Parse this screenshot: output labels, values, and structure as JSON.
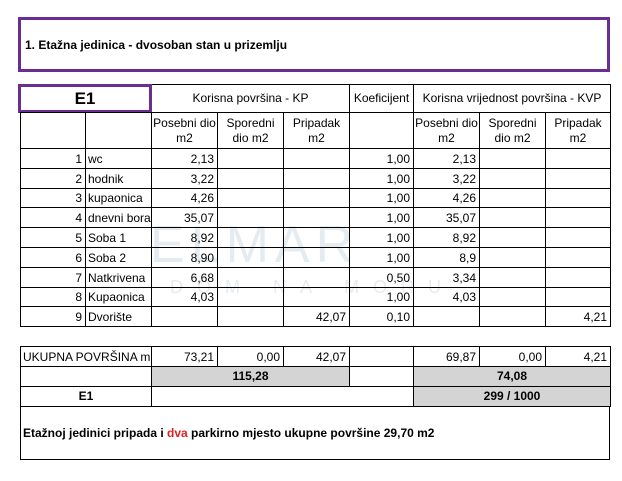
{
  "header": {
    "title": "1. Etažna jedinica - dvosoban stan u prizemlju"
  },
  "table": {
    "unit_label": "E1",
    "group_headers": [
      "Korisna površina - KP",
      "Koeficijent",
      "Korisna vrijednost površina - KVP"
    ],
    "sub_headers": [
      "Posebni dio m2",
      "Sporedni dio m2",
      "Pripadak m2",
      "Posebni dio m2",
      "Sporedni dio m2",
      "Pripadak m2"
    ],
    "rows": [
      [
        1,
        "wc",
        "2,13",
        null,
        null,
        "1,00",
        "2,13",
        null,
        null
      ],
      [
        2,
        "hodnik",
        "3,22",
        null,
        null,
        "1,00",
        "3,22",
        null,
        null
      ],
      [
        3,
        "kupaonica",
        "4,26",
        null,
        null,
        "1,00",
        "4,26",
        null,
        null
      ],
      [
        4,
        "dnevni bora",
        "35,07",
        null,
        null,
        "1,00",
        "35,07",
        null,
        null
      ],
      [
        5,
        "Soba 1",
        "8,92",
        null,
        null,
        "1,00",
        "8,92",
        null,
        null
      ],
      [
        6,
        "Soba 2",
        "8,90",
        null,
        null,
        "1,00",
        "8,9",
        null,
        null
      ],
      [
        7,
        "Natkrivena",
        "6,68",
        null,
        null,
        "0,50",
        "3,34",
        null,
        null
      ],
      [
        8,
        "Kupaonica",
        "4,03",
        null,
        null,
        "1,00",
        "4,03",
        null,
        null
      ],
      [
        9,
        "Dvorište",
        null,
        null,
        "42,07",
        "0,10",
        null,
        null,
        "4,21"
      ]
    ]
  },
  "summary": {
    "total_label": "UKUPNA POVRŠINA m",
    "totals": [
      "73,21",
      "0,00",
      "42,07",
      "69,87",
      "0,00",
      "4,21"
    ],
    "kp_total": "115,28",
    "kvp_total": "74,08",
    "unit": "E1",
    "share": "299 / 1000"
  },
  "note": {
    "before": "Etažnoj jedinici pripada i ",
    "highlight": "dva",
    "after": " parkirno mjesto ukupne površine 29,70 m2"
  },
  "watermark": {
    "brand": "ELMAR",
    "tagline": "DOM NA MORU"
  }
}
